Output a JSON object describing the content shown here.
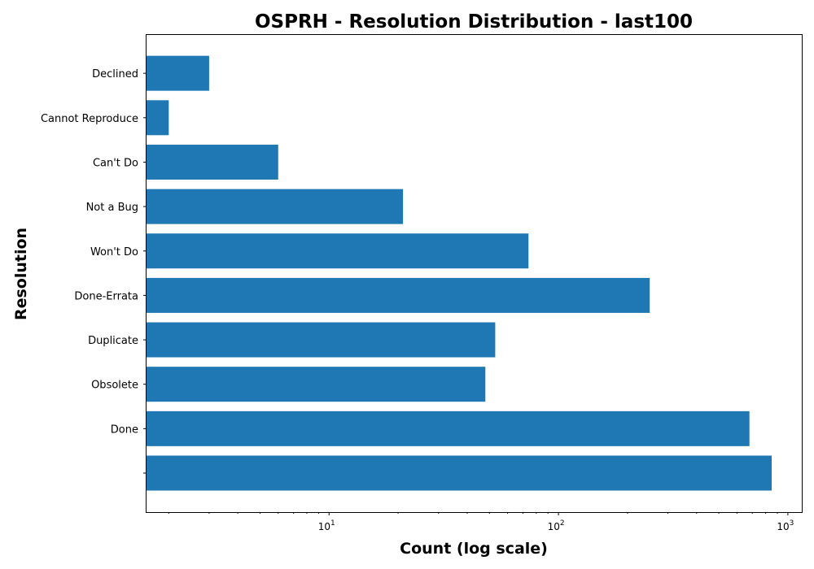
{
  "chart_data": {
    "type": "bar",
    "orientation": "horizontal",
    "title": "OSPRH - Resolution Distribution - last100",
    "xlabel": "Count (log scale)",
    "ylabel": "Resolution",
    "x_scale": "log",
    "xlim": [
      1.6,
      1150
    ],
    "x_ticks": [
      {
        "value": 10,
        "base": "10",
        "exp": "1"
      },
      {
        "value": 100,
        "base": "10",
        "exp": "2"
      },
      {
        "value": 1000,
        "base": "10",
        "exp": "3"
      }
    ],
    "categories": [
      "",
      "Done",
      "Obsolete",
      "Duplicate",
      "Done-Errata",
      "Won't Do",
      "Not a Bug",
      "Can't Do",
      "Cannot Reproduce",
      "Declined"
    ],
    "values": [
      850,
      680,
      48,
      53,
      250,
      74,
      21,
      6,
      2,
      3
    ],
    "bar_color": "#1f77b4",
    "grid": false,
    "legend": "none"
  }
}
